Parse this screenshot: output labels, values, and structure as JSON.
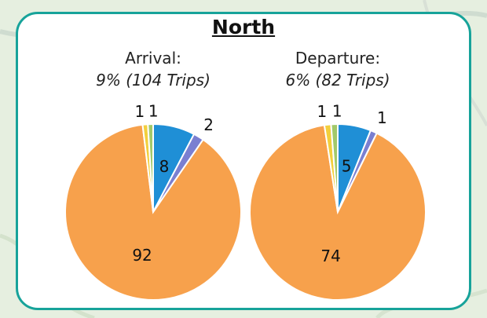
{
  "title": "North",
  "colors": [
    "#1f8fd6",
    "#7a7fd1",
    "#f7a14c",
    "#f2cf3d",
    "#a3c96a"
  ],
  "chart_data": [
    {
      "type": "pie",
      "label": "Arrival:",
      "sublabel": "9% (104 Trips)",
      "slices": [
        {
          "value": 8,
          "label": "8",
          "color": "#1f8fd6"
        },
        {
          "value": 2,
          "label": "2",
          "color": "#7a7fd1"
        },
        {
          "value": 92,
          "label": "92",
          "color": "#f7a14c"
        },
        {
          "value": 1,
          "label": "1",
          "color": "#f2cf3d"
        },
        {
          "value": 1,
          "label": "1",
          "color": "#a3c96a"
        }
      ]
    },
    {
      "type": "pie",
      "label": "Departure:",
      "sublabel": "6% (82 Trips)",
      "slices": [
        {
          "value": 5,
          "label": "5",
          "color": "#1f8fd6"
        },
        {
          "value": 1,
          "label": "1",
          "color": "#7a7fd1"
        },
        {
          "value": 74,
          "label": "74",
          "color": "#f7a14c"
        },
        {
          "value": 1,
          "label": "1",
          "color": "#f2cf3d"
        },
        {
          "value": 1,
          "label": "1",
          "color": "#a3c96a"
        }
      ]
    }
  ]
}
